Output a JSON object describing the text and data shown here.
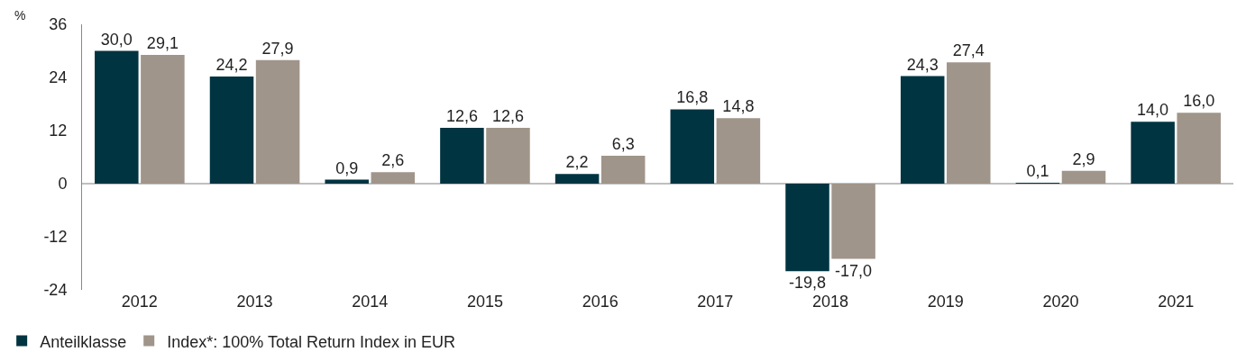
{
  "chart_data": {
    "type": "bar",
    "ylabel": "%",
    "categories": [
      "2012",
      "2013",
      "2014",
      "2015",
      "2016",
      "2017",
      "2018",
      "2019",
      "2020",
      "2021"
    ],
    "series": [
      {
        "name": "Anteilklasse",
        "color": "#003441",
        "values": [
          30.0,
          24.2,
          0.9,
          12.6,
          2.2,
          16.8,
          -19.8,
          24.3,
          0.1,
          14.0
        ],
        "value_labels": [
          "30,0",
          "24,2",
          "0,9",
          "12,6",
          "2,2",
          "16,8",
          "-19,8",
          "24,3",
          "0,1",
          "14,0"
        ]
      },
      {
        "name": "Index*: 100% Total Return Index in EUR",
        "color": "#a0958a",
        "values": [
          29.1,
          27.9,
          2.6,
          12.6,
          6.3,
          14.8,
          -17.0,
          27.4,
          2.9,
          16.0
        ],
        "value_labels": [
          "29,1",
          "27,9",
          "2,6",
          "12,6",
          "6,3",
          "14,8",
          "-17,0",
          "27,4",
          "2,9",
          "16,0"
        ]
      }
    ],
    "ylim": [
      -24,
      36
    ],
    "yticks": [
      -24,
      -12,
      0,
      12,
      24,
      36
    ],
    "legend": "bottom left"
  }
}
